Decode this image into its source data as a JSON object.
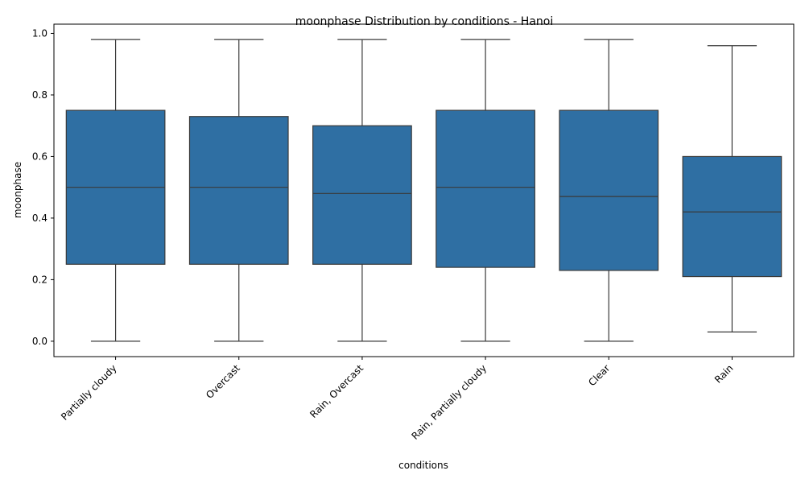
{
  "chart_data": {
    "type": "box",
    "title": "moonphase Distribution by conditions - Hanoi",
    "xlabel": "conditions",
    "ylabel": "moonphase",
    "ylim": [
      -0.05,
      1.03
    ],
    "yticks": [
      "0.0",
      "0.2",
      "0.4",
      "0.6",
      "0.8",
      "1.0"
    ],
    "grid": false,
    "box_color": "#2f6fa3",
    "line_color": "#3a3a3a",
    "categories": [
      "Partially cloudy",
      "Overcast",
      "Rain, Overcast",
      "Rain, Partially cloudy",
      "Clear",
      "Rain"
    ],
    "boxes": [
      {
        "min": 0.0,
        "q1": 0.25,
        "median": 0.5,
        "q3": 0.75,
        "max": 0.98
      },
      {
        "min": 0.0,
        "q1": 0.25,
        "median": 0.5,
        "q3": 0.73,
        "max": 0.98
      },
      {
        "min": 0.0,
        "q1": 0.25,
        "median": 0.48,
        "q3": 0.7,
        "max": 0.98
      },
      {
        "min": 0.0,
        "q1": 0.24,
        "median": 0.5,
        "q3": 0.75,
        "max": 0.98
      },
      {
        "min": 0.0,
        "q1": 0.23,
        "median": 0.47,
        "q3": 0.75,
        "max": 0.98
      },
      {
        "min": 0.03,
        "q1": 0.21,
        "median": 0.42,
        "q3": 0.6,
        "max": 0.96
      }
    ]
  }
}
